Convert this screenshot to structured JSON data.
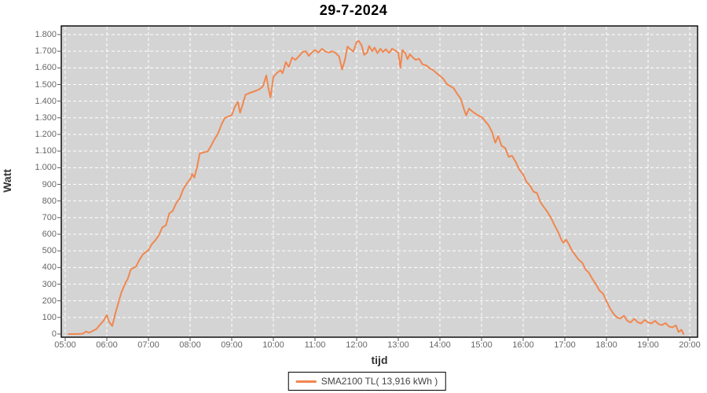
{
  "chart_data": {
    "type": "line",
    "title": "29-7-2024",
    "xlabel": "tijd",
    "ylabel": "Watt",
    "xlim": [
      5,
      20.2
    ],
    "ylim": [
      0,
      1800
    ],
    "grid": "white dashed gridlines on gray plot, hourly vertical, every 100 W horizontal",
    "legend_position": "bottom-center",
    "x_ticks": [
      "05:00",
      "06:00",
      "07:00",
      "08:00",
      "09:00",
      "10:00",
      "11:00",
      "12:00",
      "13:00",
      "14:00",
      "15:00",
      "16:00",
      "17:00",
      "18:00",
      "19:00",
      "20:00"
    ],
    "y_ticks": [
      "0",
      "100",
      "200",
      "300",
      "400",
      "500",
      "600",
      "700",
      "800",
      "900",
      "1.000",
      "1.100",
      "1.200",
      "1.300",
      "1.400",
      "1.500",
      "1.600",
      "1.700",
      "1.800"
    ],
    "colors": {
      "line": "#F0874F",
      "plot_bg": "#D4D4D4",
      "plot_border": "#000000",
      "grid": "#FFFFFF",
      "tick_label": "#666666",
      "axis_title": "#333333",
      "title": "#000000",
      "legend_border": "#000000",
      "legend_bg": "#FFFFFF"
    },
    "series": [
      {
        "name": "SMA2100 TL( 13,916 kWh )",
        "color": "#F0874F",
        "x_unit": "hour_decimal",
        "y_unit": "Watt",
        "points": [
          [
            5.08,
            0
          ],
          [
            5.25,
            0
          ],
          [
            5.42,
            2
          ],
          [
            5.5,
            15
          ],
          [
            5.58,
            8
          ],
          [
            5.67,
            20
          ],
          [
            5.75,
            30
          ],
          [
            5.83,
            55
          ],
          [
            5.92,
            80
          ],
          [
            6.0,
            115
          ],
          [
            6.05,
            75
          ],
          [
            6.13,
            48
          ],
          [
            6.2,
            120
          ],
          [
            6.28,
            190
          ],
          [
            6.35,
            250
          ],
          [
            6.45,
            310
          ],
          [
            6.5,
            330
          ],
          [
            6.58,
            390
          ],
          [
            6.7,
            405
          ],
          [
            6.78,
            445
          ],
          [
            6.87,
            480
          ],
          [
            7.0,
            505
          ],
          [
            7.08,
            540
          ],
          [
            7.17,
            565
          ],
          [
            7.25,
            595
          ],
          [
            7.33,
            640
          ],
          [
            7.42,
            655
          ],
          [
            7.5,
            725
          ],
          [
            7.58,
            740
          ],
          [
            7.67,
            788
          ],
          [
            7.75,
            815
          ],
          [
            7.83,
            868
          ],
          [
            7.92,
            905
          ],
          [
            8.0,
            930
          ],
          [
            8.05,
            962
          ],
          [
            8.1,
            940
          ],
          [
            8.17,
            1005
          ],
          [
            8.23,
            1085
          ],
          [
            8.33,
            1092
          ],
          [
            8.42,
            1098
          ],
          [
            8.5,
            1130
          ],
          [
            8.58,
            1168
          ],
          [
            8.67,
            1205
          ],
          [
            8.75,
            1258
          ],
          [
            8.83,
            1298
          ],
          [
            8.92,
            1308
          ],
          [
            9.0,
            1315
          ],
          [
            9.08,
            1368
          ],
          [
            9.15,
            1395
          ],
          [
            9.2,
            1330
          ],
          [
            9.27,
            1385
          ],
          [
            9.33,
            1438
          ],
          [
            9.42,
            1448
          ],
          [
            9.5,
            1455
          ],
          [
            9.58,
            1462
          ],
          [
            9.67,
            1472
          ],
          [
            9.75,
            1490
          ],
          [
            9.83,
            1555
          ],
          [
            9.88,
            1480
          ],
          [
            9.93,
            1422
          ],
          [
            10.0,
            1545
          ],
          [
            10.08,
            1568
          ],
          [
            10.17,
            1585
          ],
          [
            10.22,
            1568
          ],
          [
            10.3,
            1635
          ],
          [
            10.37,
            1605
          ],
          [
            10.45,
            1662
          ],
          [
            10.53,
            1648
          ],
          [
            10.62,
            1672
          ],
          [
            10.7,
            1695
          ],
          [
            10.78,
            1700
          ],
          [
            10.85,
            1672
          ],
          [
            10.92,
            1692
          ],
          [
            11.0,
            1708
          ],
          [
            11.08,
            1692
          ],
          [
            11.17,
            1715
          ],
          [
            11.25,
            1698
          ],
          [
            11.33,
            1692
          ],
          [
            11.42,
            1700
          ],
          [
            11.5,
            1688
          ],
          [
            11.58,
            1668
          ],
          [
            11.65,
            1590
          ],
          [
            11.72,
            1650
          ],
          [
            11.78,
            1728
          ],
          [
            11.85,
            1712
          ],
          [
            11.92,
            1698
          ],
          [
            12.0,
            1755
          ],
          [
            12.05,
            1762
          ],
          [
            12.12,
            1735
          ],
          [
            12.18,
            1678
          ],
          [
            12.25,
            1692
          ],
          [
            12.3,
            1732
          ],
          [
            12.37,
            1700
          ],
          [
            12.43,
            1722
          ],
          [
            12.5,
            1688
          ],
          [
            12.57,
            1715
          ],
          [
            12.63,
            1695
          ],
          [
            12.7,
            1712
          ],
          [
            12.78,
            1690
          ],
          [
            12.85,
            1715
          ],
          [
            12.92,
            1705
          ],
          [
            13.0,
            1692
          ],
          [
            13.05,
            1600
          ],
          [
            13.1,
            1708
          ],
          [
            13.17,
            1688
          ],
          [
            13.22,
            1652
          ],
          [
            13.28,
            1682
          ],
          [
            13.35,
            1662
          ],
          [
            13.42,
            1648
          ],
          [
            13.5,
            1655
          ],
          [
            13.58,
            1622
          ],
          [
            13.67,
            1615
          ],
          [
            13.75,
            1598
          ],
          [
            13.83,
            1588
          ],
          [
            13.92,
            1568
          ],
          [
            14.0,
            1552
          ],
          [
            14.08,
            1535
          ],
          [
            14.17,
            1502
          ],
          [
            14.25,
            1490
          ],
          [
            14.33,
            1478
          ],
          [
            14.42,
            1442
          ],
          [
            14.5,
            1415
          ],
          [
            14.58,
            1350
          ],
          [
            14.63,
            1315
          ],
          [
            14.7,
            1355
          ],
          [
            14.78,
            1338
          ],
          [
            14.87,
            1322
          ],
          [
            14.95,
            1310
          ],
          [
            15.0,
            1305
          ],
          [
            15.08,
            1282
          ],
          [
            15.17,
            1255
          ],
          [
            15.25,
            1215
          ],
          [
            15.33,
            1150
          ],
          [
            15.4,
            1190
          ],
          [
            15.48,
            1132
          ],
          [
            15.57,
            1118
          ],
          [
            15.65,
            1065
          ],
          [
            15.73,
            1072
          ],
          [
            15.82,
            1035
          ],
          [
            15.9,
            992
          ],
          [
            16.0,
            958
          ],
          [
            16.08,
            915
          ],
          [
            16.17,
            890
          ],
          [
            16.25,
            855
          ],
          [
            16.33,
            848
          ],
          [
            16.42,
            790
          ],
          [
            16.5,
            762
          ],
          [
            16.58,
            735
          ],
          [
            16.67,
            698
          ],
          [
            16.75,
            655
          ],
          [
            16.83,
            618
          ],
          [
            16.92,
            565
          ],
          [
            16.97,
            548
          ],
          [
            17.03,
            568
          ],
          [
            17.1,
            538
          ],
          [
            17.17,
            502
          ],
          [
            17.25,
            475
          ],
          [
            17.33,
            448
          ],
          [
            17.42,
            428
          ],
          [
            17.5,
            388
          ],
          [
            17.58,
            368
          ],
          [
            17.67,
            328
          ],
          [
            17.75,
            298
          ],
          [
            17.83,
            262
          ],
          [
            17.92,
            242
          ],
          [
            18.0,
            198
          ],
          [
            18.08,
            158
          ],
          [
            18.17,
            122
          ],
          [
            18.25,
            100
          ],
          [
            18.33,
            93
          ],
          [
            18.42,
            110
          ],
          [
            18.5,
            80
          ],
          [
            18.58,
            70
          ],
          [
            18.67,
            92
          ],
          [
            18.75,
            70
          ],
          [
            18.83,
            64
          ],
          [
            18.92,
            85
          ],
          [
            19.0,
            70
          ],
          [
            19.08,
            64
          ],
          [
            19.17,
            80
          ],
          [
            19.25,
            60
          ],
          [
            19.33,
            54
          ],
          [
            19.42,
            66
          ],
          [
            19.5,
            46
          ],
          [
            19.58,
            40
          ],
          [
            19.67,
            52
          ],
          [
            19.73,
            12
          ],
          [
            19.8,
            26
          ],
          [
            19.85,
            0
          ]
        ]
      }
    ]
  }
}
